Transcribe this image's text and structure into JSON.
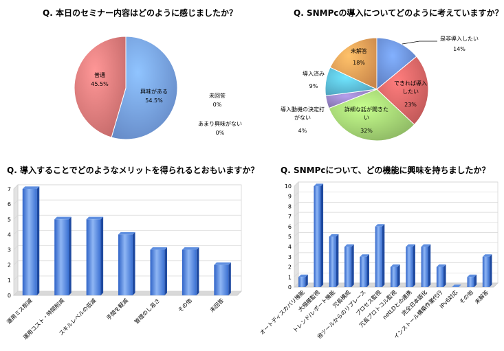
{
  "chart_data": [
    {
      "type": "pie",
      "title": "Q. 本日のセミナー内容はどのように感じましたか？",
      "slices": [
        {
          "label": "興味がある",
          "value": 54.5,
          "pct": "54.5%",
          "color": "#7aa6f0"
        },
        {
          "label": "普通",
          "value": 45.5,
          "pct": "45.5%",
          "color": "#ee8080"
        },
        {
          "label": "未回答",
          "value": 0,
          "pct": "0%",
          "color": "#9bcb6a"
        },
        {
          "label": "あまり興味がない",
          "value": 0,
          "pct": "0%",
          "color": "#a99ad0"
        }
      ]
    },
    {
      "type": "pie",
      "title": "Q. SNMPcの導入についてどのように考えていますか？",
      "slices": [
        {
          "label": "是非導入したい",
          "value": 14,
          "pct": "14%",
          "color": "#6f96e6"
        },
        {
          "label": "できれば導入したい",
          "value": 23,
          "pct": "23%",
          "color": "#e86a6a"
        },
        {
          "label": "詳細な話が聞きたい",
          "value": 32,
          "pct": "32%",
          "color": "#a9dd78"
        },
        {
          "label": "導入動機の決定打がない",
          "value": 4,
          "pct": "4%",
          "color": "#9a87c9"
        },
        {
          "label": "導入済み",
          "value": 9,
          "pct": "9%",
          "color": "#5fc3e4"
        },
        {
          "label": "未解答",
          "value": 18,
          "pct": "18%",
          "color": "#f5a45a"
        }
      ]
    },
    {
      "type": "bar",
      "title": "Q. 導入することでどのようなメリットを得られるとおもいますか？",
      "categories": [
        "運用ミス削減",
        "運用コスト・時間削減",
        "スキルレベルの低減",
        "手間を軽減",
        "管理のし易さ",
        "その他",
        "未回答"
      ],
      "values": [
        7,
        5,
        5,
        4,
        3,
        3,
        2
      ],
      "ylim": [
        0,
        7
      ],
      "ticks": [
        "0",
        "1",
        "2",
        "3",
        "4",
        "5",
        "6",
        "7"
      ]
    },
    {
      "type": "bar",
      "title": "Q. SNMPcについて、どの機能に興味を持ちましたか？",
      "categories": [
        "オートディスカバリ機能",
        "大規模監視",
        "トレンド/レポート機能",
        "冗長構成",
        "他ツールからのリプレース",
        "プロセス監視",
        "冗長プロトコル監視",
        "netLDとの連携",
        "完全日本語化",
        "インストール構築作業代行",
        "IPv6対応",
        "その他",
        "未解答"
      ],
      "values": [
        1,
        10,
        5,
        4,
        3,
        6,
        2,
        4,
        4,
        2,
        0,
        1,
        3
      ],
      "ylim": [
        0,
        10
      ],
      "ticks": [
        "0",
        "1",
        "2",
        "3",
        "4",
        "5",
        "6",
        "7",
        "8",
        "9",
        "10"
      ]
    }
  ]
}
